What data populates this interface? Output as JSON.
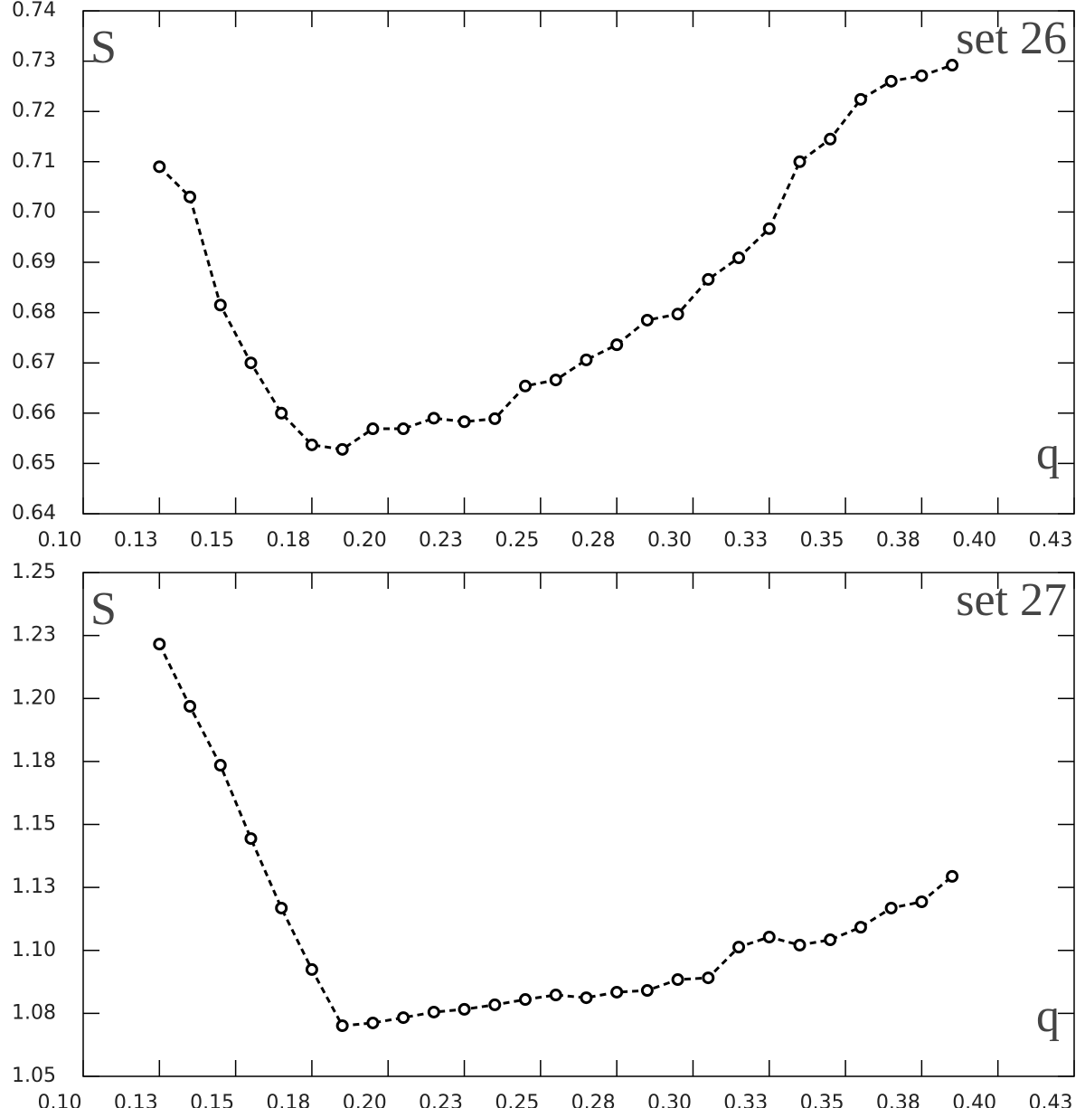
{
  "chart_data": [
    {
      "type": "line",
      "y_label": "S",
      "x_label": "q",
      "label": "set 26",
      "x": [
        0.125,
        0.135,
        0.145,
        0.155,
        0.165,
        0.175,
        0.185,
        0.195,
        0.205,
        0.215,
        0.225,
        0.235,
        0.245,
        0.255,
        0.265,
        0.275,
        0.285,
        0.295,
        0.305,
        0.315,
        0.325,
        0.335,
        0.345,
        0.355,
        0.365,
        0.375,
        0.385
      ],
      "values": [
        0.709,
        0.703,
        0.6815,
        0.67,
        0.66,
        0.6537,
        0.6528,
        0.6569,
        0.6569,
        0.659,
        0.6583,
        0.6589,
        0.6654,
        0.6666,
        0.6706,
        0.6736,
        0.6785,
        0.6797,
        0.6866,
        0.6909,
        0.6967,
        0.71,
        0.7145,
        0.7224,
        0.726,
        0.7271,
        0.7292
      ],
      "color": "#000000",
      "marker": "circle",
      "line_style": "dashed",
      "xlim": [
        0.1,
        0.425
      ],
      "xticks": [
        {
          "value": 0.1,
          "label": "0.10"
        },
        {
          "value": 0.125,
          "label": "0.13"
        },
        {
          "value": 0.15,
          "label": "0.15"
        },
        {
          "value": 0.175,
          "label": "0.18"
        },
        {
          "value": 0.2,
          "label": "0.20"
        },
        {
          "value": 0.225,
          "label": "0.23"
        },
        {
          "value": 0.25,
          "label": "0.25"
        },
        {
          "value": 0.275,
          "label": "0.28"
        },
        {
          "value": 0.3,
          "label": "0.30"
        },
        {
          "value": 0.325,
          "label": "0.33"
        },
        {
          "value": 0.35,
          "label": "0.35"
        },
        {
          "value": 0.375,
          "label": "0.38"
        },
        {
          "value": 0.4,
          "label": "0.40"
        },
        {
          "value": 0.425,
          "label": "0.43"
        }
      ],
      "ylim": [
        0.64,
        0.74
      ],
      "yticks": [
        0.64,
        0.65,
        0.66,
        0.67,
        0.68,
        0.69,
        {
          "value": 0.7,
          "label": "0.70"
        },
        0.71,
        0.72,
        0.73,
        0.74
      ]
    },
    {
      "type": "line",
      "y_label": "S",
      "x_label": "q",
      "label": "set 27",
      "x": [
        0.125,
        0.135,
        0.145,
        0.155,
        0.165,
        0.175,
        0.185,
        0.195,
        0.205,
        0.215,
        0.225,
        0.235,
        0.245,
        0.255,
        0.265,
        0.275,
        0.285,
        0.295,
        0.305,
        0.315,
        0.325,
        0.335,
        0.345,
        0.355,
        0.365,
        0.375,
        0.385
      ],
      "values": [
        1.2216,
        1.1969,
        1.1735,
        1.1444,
        1.1168,
        1.0924,
        1.0701,
        1.0712,
        1.0733,
        1.0755,
        1.0766,
        1.0784,
        1.0805,
        1.0823,
        1.0812,
        1.0834,
        1.0841,
        1.0884,
        1.0891,
        1.1013,
        1.1053,
        1.1021,
        1.1042,
        1.1092,
        1.1168,
        1.1193,
        1.1294
      ],
      "color": "#000000",
      "marker": "circle",
      "line_style": "dashed",
      "xlim": [
        0.1,
        0.425
      ],
      "xticks": [
        {
          "value": 0.1,
          "label": "0.10"
        },
        {
          "value": 0.125,
          "label": "0.13"
        },
        {
          "value": 0.15,
          "label": "0.15"
        },
        {
          "value": 0.175,
          "label": "0.18"
        },
        {
          "value": 0.2,
          "label": "0.20"
        },
        {
          "value": 0.225,
          "label": "0.23"
        },
        {
          "value": 0.25,
          "label": "0.25"
        },
        {
          "value": 0.275,
          "label": "0.28"
        },
        {
          "value": 0.3,
          "label": "0.30"
        },
        {
          "value": 0.325,
          "label": "0.33"
        },
        {
          "value": 0.35,
          "label": "0.35"
        },
        {
          "value": 0.375,
          "label": "0.38"
        },
        {
          "value": 0.4,
          "label": "0.40"
        },
        {
          "value": 0.425,
          "label": "0.43"
        }
      ],
      "ylim": [
        1.05,
        1.25
      ],
      "yticks": [
        1.05,
        {
          "value": 1.075,
          "label": "1.08"
        },
        {
          "value": 1.1,
          "label": "1.10"
        },
        {
          "value": 1.125,
          "label": "1.13"
        },
        1.15,
        {
          "value": 1.175,
          "label": "1.18"
        },
        {
          "value": 1.2,
          "label": "1.20"
        },
        {
          "value": 1.225,
          "label": "1.23"
        },
        1.25
      ]
    }
  ]
}
